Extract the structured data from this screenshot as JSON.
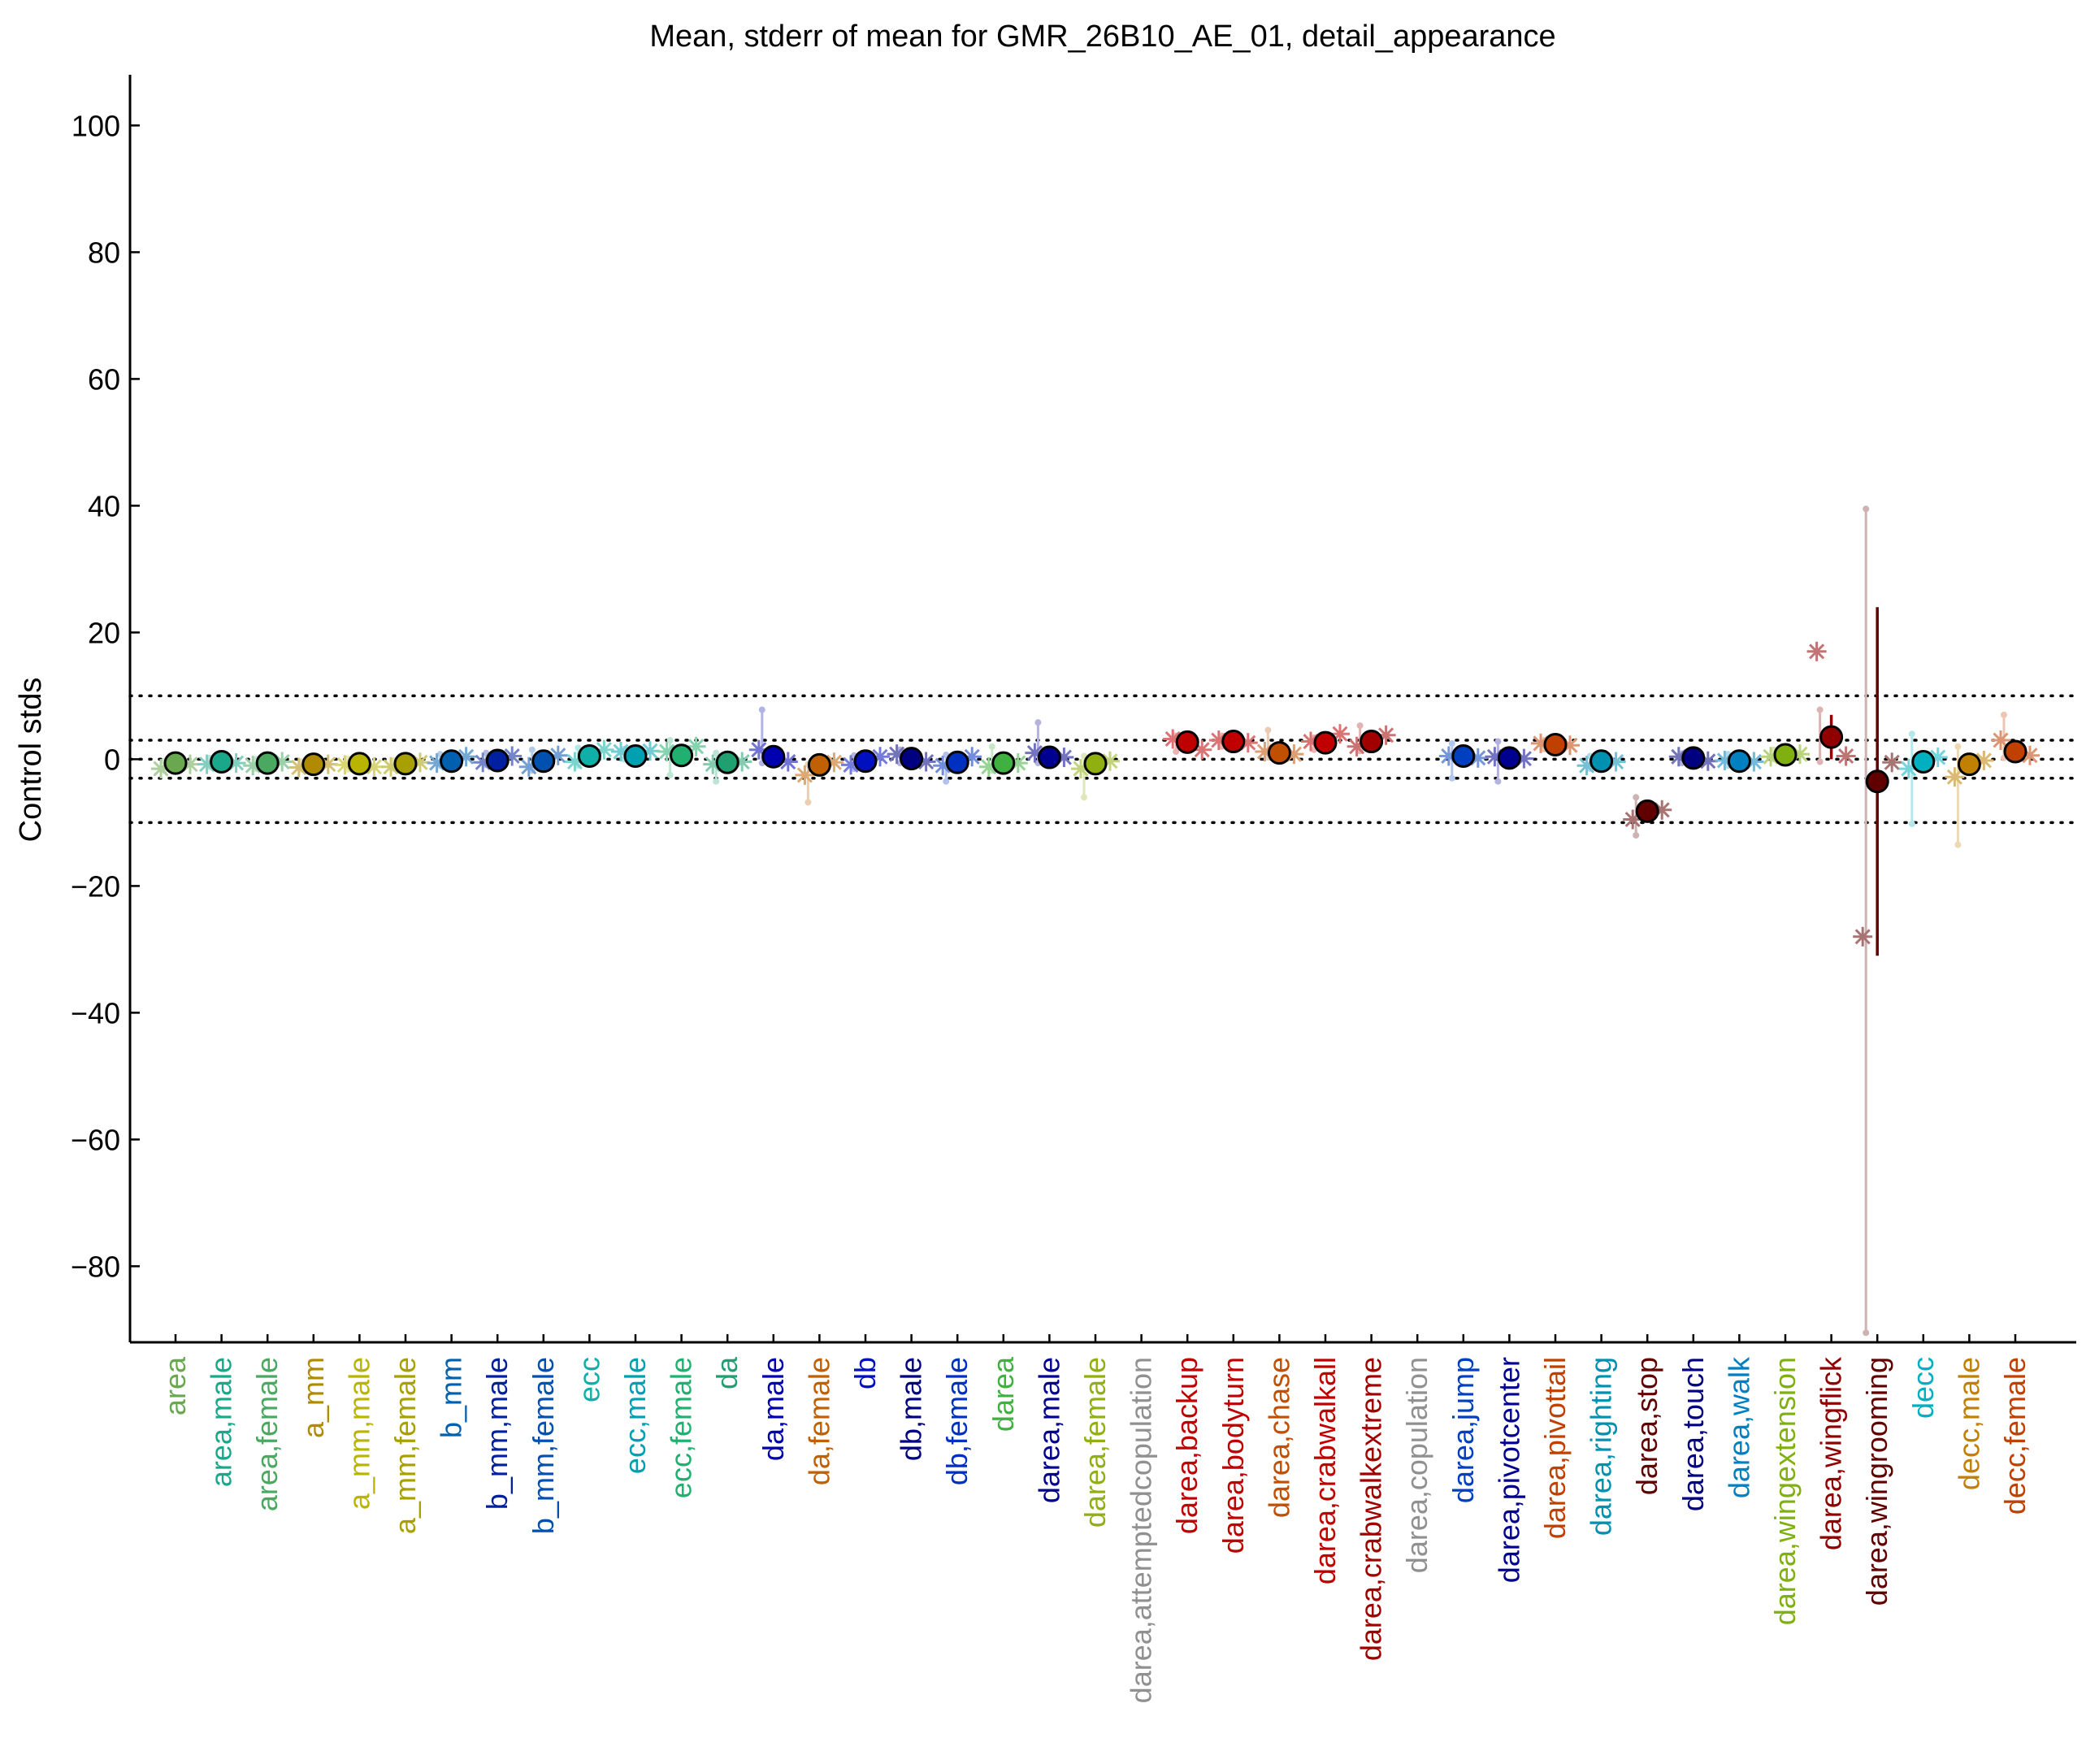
{
  "chart_data": {
    "type": "scatter",
    "title": "Mean, stderr of mean for GMR_26B10_AE_01, detail_appearance",
    "xlabel": "",
    "ylabel": "Control stds",
    "ylim": [
      -92,
      108
    ],
    "yticks": [
      100,
      80,
      60,
      40,
      20,
      0,
      -20,
      -40,
      -60,
      -80
    ],
    "ytick_labels": [
      "100",
      "80",
      "60",
      "40",
      "20",
      "0",
      "−20",
      "−40",
      "−60",
      "−80"
    ],
    "reference_lines": [
      10,
      3,
      0,
      -3,
      -10
    ],
    "grid": false,
    "legend": "none",
    "categories": [
      "area",
      "area,male",
      "area,female",
      "a_mm",
      "a_mm,male",
      "a_mm,female",
      "b_mm",
      "b_mm,male",
      "b_mm,female",
      "ecc",
      "ecc,male",
      "ecc,female",
      "da",
      "da,male",
      "da,female",
      "db",
      "db,male",
      "db,female",
      "darea",
      "darea,male",
      "darea,female",
      "darea,attemptedcopulation",
      "darea,backup",
      "darea,bodyturn",
      "darea,chase",
      "darea,crabwalkall",
      "darea,crabwalkextreme",
      "darea,copulation",
      "darea,jump",
      "darea,pivotcenter",
      "darea,pivottail",
      "darea,righting",
      "darea,stop",
      "darea,touch",
      "darea,walk",
      "darea,wingextension",
      "darea,wingflick",
      "darea,wingrooming",
      "decc",
      "decc,male",
      "decc,female"
    ],
    "colors": [
      "#6aa84f",
      "#1aa88a",
      "#4aa860",
      "#b08a00",
      "#b8b400",
      "#a8a000",
      "#0060b0",
      "#0020a0",
      "#0050b0",
      "#10b0a8",
      "#00a0b0",
      "#20b070",
      "#20a070",
      "#0000b0",
      "#c06000",
      "#0010c0",
      "#000080",
      "#0030c0",
      "#40b040",
      "#000090",
      "#90b010",
      "#909090",
      "#c00000",
      "#c00000",
      "#c05000",
      "#c00000",
      "#a00000",
      "#909090",
      "#0040c0",
      "#000090",
      "#c04000",
      "#0090b0",
      "#600000",
      "#000080",
      "#0080c0",
      "#80b010",
      "#900000",
      "#600000",
      "#00b0c0",
      "#c08000",
      "#c04000"
    ],
    "means": [
      -0.6,
      -0.4,
      -0.6,
      -0.8,
      -0.7,
      -0.7,
      -0.3,
      -0.2,
      -0.3,
      0.5,
      0.5,
      0.6,
      -0.5,
      0.4,
      -0.9,
      -0.3,
      0.1,
      -0.5,
      -0.6,
      0.3,
      -0.7,
      null,
      2.7,
      2.8,
      1.0,
      2.6,
      2.8,
      null,
      0.5,
      0.2,
      2.3,
      -0.3,
      -8.2,
      0.2,
      -0.3,
      0.7,
      3.5,
      -3.5,
      -0.4,
      -0.8,
      1.2
    ],
    "stderr_high": [
      -0.1,
      0.1,
      -0.1,
      -0.3,
      -0.2,
      -0.2,
      0.2,
      0.3,
      0.2,
      1.0,
      1.0,
      1.2,
      0.0,
      1.0,
      -0.4,
      0.2,
      0.6,
      0.0,
      -0.1,
      0.8,
      -0.2,
      null,
      3.2,
      3.3,
      1.5,
      3.1,
      3.3,
      null,
      1.0,
      0.7,
      2.8,
      0.2,
      -7.7,
      0.7,
      0.2,
      1.2,
      7.0,
      24.0,
      0.1,
      -0.3,
      1.7
    ],
    "stderr_low": [
      -1.1,
      -0.9,
      -1.1,
      -1.3,
      -1.2,
      -1.2,
      -0.8,
      -0.7,
      -0.8,
      0.0,
      0.0,
      0.0,
      -1.0,
      -0.2,
      -1.4,
      -0.8,
      -0.4,
      -1.0,
      -1.1,
      -0.2,
      -1.2,
      null,
      2.2,
      2.3,
      0.5,
      2.1,
      2.3,
      null,
      0.0,
      -0.3,
      1.8,
      -0.8,
      -8.7,
      -0.3,
      -0.8,
      0.2,
      0.0,
      -31.0,
      -0.9,
      -1.3,
      0.7
    ],
    "sub_values_left": [
      -1.5,
      -0.8,
      -1.0,
      -1.3,
      -0.9,
      -1.2,
      -0.6,
      -0.5,
      -1.2,
      -0.4,
      1.2,
      1.2,
      -0.8,
      1.5,
      -2.5,
      -0.9,
      0.8,
      -1.0,
      -1.2,
      1.0,
      -1.5,
      null,
      3.2,
      3.0,
      1.2,
      2.8,
      2.0,
      null,
      0.5,
      0.4,
      2.5,
      -1.0,
      -9.5,
      0.4,
      -0.2,
      0.4,
      17.0,
      -28.0,
      -1.5,
      -2.8,
      3.0
    ],
    "sub_values_right": [
      -0.8,
      -0.6,
      -0.4,
      -0.8,
      -1.2,
      -0.5,
      0.4,
      0.5,
      0.6,
      1.5,
      1.3,
      2.0,
      -0.4,
      -0.4,
      -0.5,
      0.4,
      -0.4,
      0.4,
      -0.6,
      0.3,
      -0.3,
      null,
      1.5,
      2.6,
      0.8,
      4.0,
      3.8,
      null,
      0.2,
      0.1,
      2.2,
      -0.4,
      -8.0,
      -0.3,
      -0.4,
      0.8,
      0.5,
      -0.5,
      0.3,
      -0.2,
      0.6
    ],
    "whisker_high": [
      -0.3,
      0.2,
      0.0,
      -0.4,
      0.1,
      -0.2,
      0.8,
      1.0,
      1.5,
      1.8,
      1.6,
      3.0,
      1.0,
      7.8,
      -0.8,
      0.6,
      1.5,
      0.7,
      2.0,
      5.8,
      0.5,
      null,
      3.7,
      3.7,
      4.6,
      3.4,
      5.3,
      null,
      2.5,
      2.8,
      3.0,
      0.5,
      -6.0,
      0.9,
      0.8,
      1.5,
      7.8,
      39.5,
      4.0,
      2.0,
      7.0
    ],
    "whisker_low": [
      -1.8,
      -1.2,
      -1.5,
      -1.6,
      -1.6,
      -1.5,
      -1.0,
      -0.9,
      -1.8,
      -1.0,
      0.0,
      -2.5,
      -3.5,
      -0.6,
      -6.8,
      -1.5,
      -0.6,
      -3.5,
      -1.8,
      -0.6,
      -6.0,
      null,
      1.2,
      2.0,
      0.3,
      1.5,
      1.3,
      null,
      -3.0,
      -3.5,
      1.6,
      -1.5,
      -12.0,
      -0.6,
      -1.0,
      0.0,
      -0.4,
      -90.5,
      -10.2,
      -13.5,
      0.2
    ]
  }
}
